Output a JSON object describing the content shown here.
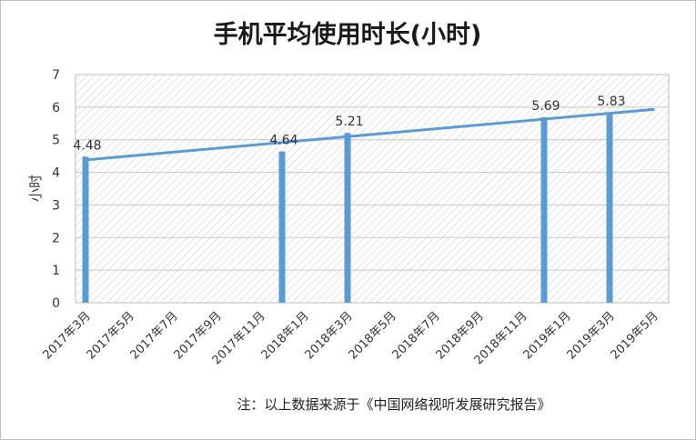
{
  "chart_data": {
    "type": "bar",
    "title": "手机平均使用时长(小时)",
    "ylabel": "小时",
    "xlabel": "",
    "ylim": [
      0,
      7
    ],
    "yticks": [
      "0",
      "1",
      "2",
      "3",
      "4",
      "5",
      "6",
      "7"
    ],
    "categories": [
      "2017年3月",
      "2017年5月",
      "2017年7月",
      "2017年9月",
      "2017年11月",
      "2018年1月",
      "2018年3月",
      "2018年5月",
      "2018年7月",
      "2018年9月",
      "2018年11月",
      "2019年1月",
      "2019年3月",
      "2019年5月"
    ],
    "bars": [
      {
        "date": "2017年3月",
        "value": 4.48,
        "label": "4.48"
      },
      {
        "date": "2017年12月",
        "value": 4.64,
        "label": "4.64"
      },
      {
        "date": "2018年3月",
        "value": 5.21,
        "label": "5.21"
      },
      {
        "date": "2018年12月",
        "value": 5.69,
        "label": "5.69"
      },
      {
        "date": "2019年3月",
        "value": 5.83,
        "label": "5.83"
      }
    ],
    "trendline": {
      "type": "linear",
      "from": {
        "date": "2017年3月",
        "value": 4.38
      },
      "to": {
        "date": "2019年5月",
        "value": 5.93
      }
    },
    "grid": true,
    "plot_background": "hatched",
    "colors": {
      "bar": "#5b9bd5",
      "trendline": "#5b9bd5",
      "grid": "#c8c8c8",
      "hatch": "#cfcfcf"
    }
  },
  "note": "注：以上数据来源于《中国网络视听发展研究报告》"
}
